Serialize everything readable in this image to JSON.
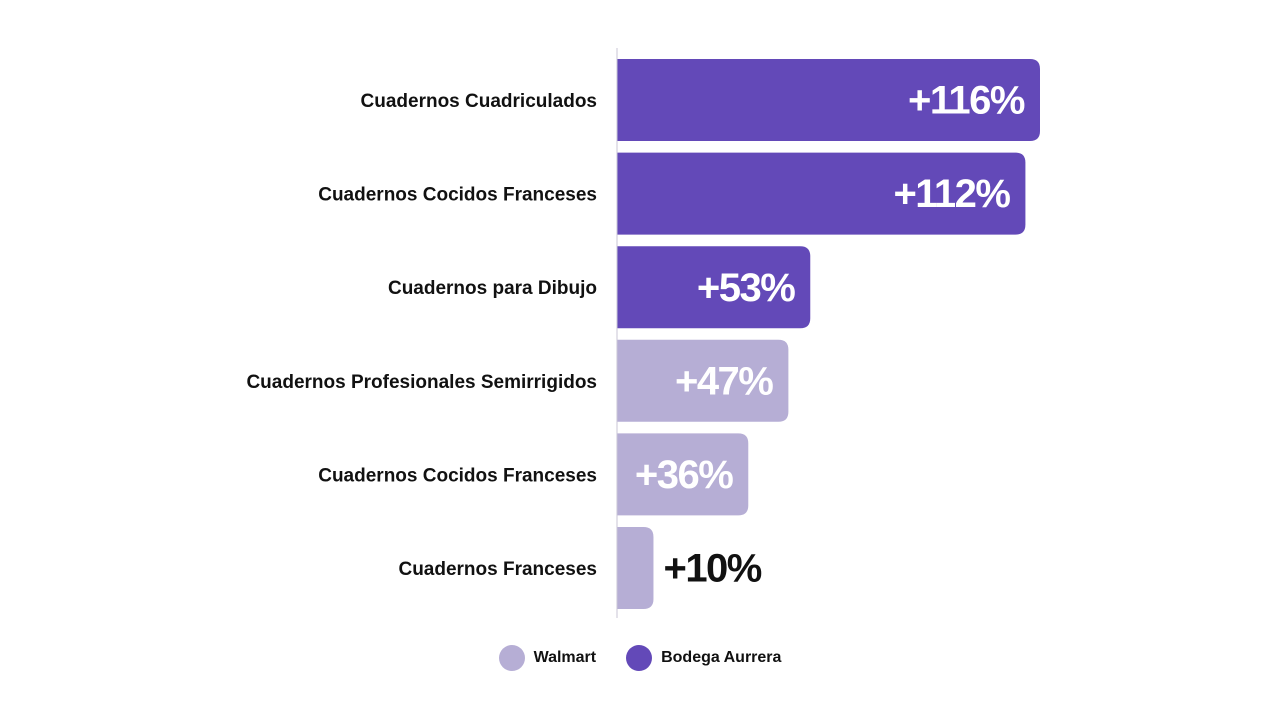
{
  "chart_data": {
    "type": "bar",
    "orientation": "horizontal",
    "categories": [
      "Cuadernos Cuadriculados",
      "Cuadernos Cocidos Franceses",
      "Cuadernos para Dibujo",
      "Cuadernos Profesionales Semirrigidos",
      "Cuadernos Cocidos Franceses",
      "Cuadernos Franceses"
    ],
    "values": [
      116,
      112,
      53,
      47,
      36,
      10
    ],
    "value_labels": [
      "+116%",
      "+112%",
      "+53%",
      "+47%",
      "+36%",
      "+10%"
    ],
    "bar_series": [
      "Bodega Aurrera",
      "Bodega Aurrera",
      "Bodega Aurrera",
      "Walmart",
      "Walmart",
      "Walmart"
    ],
    "series": [
      {
        "name": "Walmart",
        "color": "#b6aed5"
      },
      {
        "name": "Bodega Aurrera",
        "color": "#6349b8"
      }
    ],
    "xlim": [
      0,
      116
    ],
    "grid": false,
    "legend_position": "bottom-center",
    "title": "",
    "xlabel": "",
    "ylabel": ""
  }
}
